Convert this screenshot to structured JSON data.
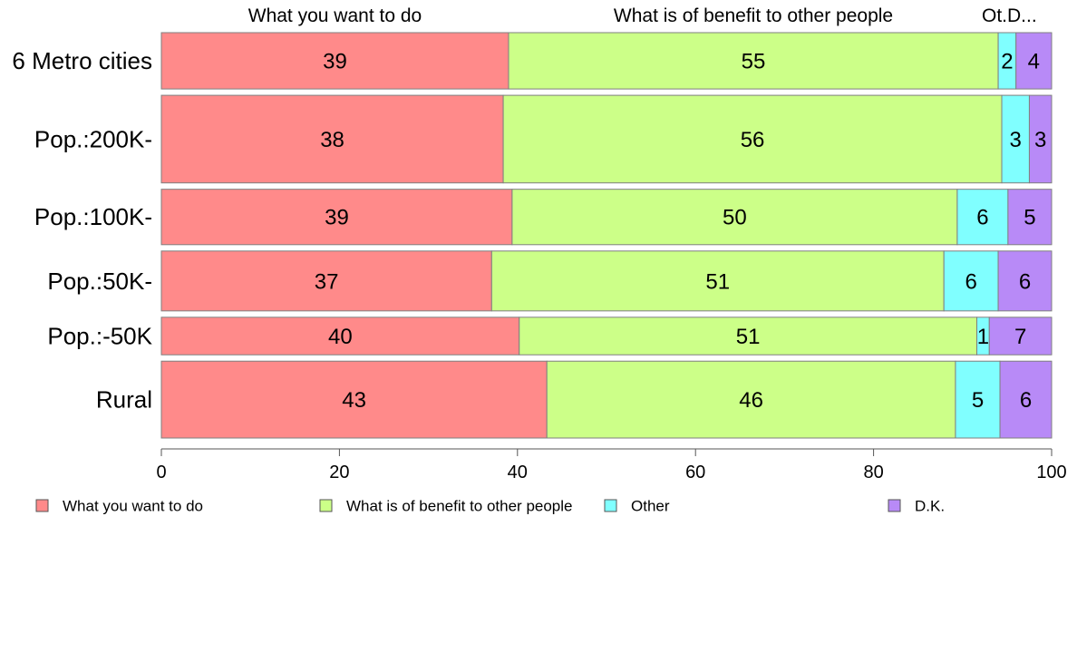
{
  "chart_data": {
    "type": "bar",
    "orientation": "horizontal",
    "stacked": true,
    "categories": [
      "6 Metro cities",
      "Pop.:200K-",
      "Pop.:100K-",
      "Pop.:50K-",
      "Pop.:-50K",
      "Rural"
    ],
    "series": [
      {
        "name": "What you want to do",
        "values": [
          39,
          38,
          39,
          37,
          40,
          43
        ],
        "color": "#ff8a8a"
      },
      {
        "name": "What is of benefit to other people",
        "values": [
          55,
          56,
          50,
          51,
          51,
          46
        ],
        "color": "#ccff88"
      },
      {
        "name": "Other",
        "values": [
          2,
          3,
          6,
          6,
          1,
          5
        ],
        "color": "#80ffff"
      },
      {
        "name": "D.K.",
        "values": [
          4,
          3,
          5,
          6,
          7,
          6
        ],
        "color": "#b88af7"
      }
    ],
    "exact_values": [
      [
        39.0,
        55.0,
        2.0,
        4.0
      ],
      [
        38.4,
        56.0,
        3.1,
        2.5
      ],
      [
        39.4,
        50.0,
        5.7,
        4.9
      ],
      [
        37.1,
        50.8,
        6.1,
        6.0
      ],
      [
        40.2,
        51.4,
        1.4,
        7.0
      ],
      [
        43.3,
        45.9,
        5.0,
        5.8
      ]
    ],
    "group_sizes": [
      0.63,
      0.98,
      0.62,
      0.67,
      0.42,
      0.86
    ],
    "top_labels": [
      "What you want to do",
      "What is of benefit to other people",
      "Ot.",
      "D..."
    ],
    "xlim": [
      0,
      100
    ],
    "xticks": [
      0,
      20,
      40,
      60,
      80,
      100
    ],
    "xlabel": "",
    "ylabel": "",
    "title": "",
    "legend_position": "bottom",
    "grid": false
  }
}
